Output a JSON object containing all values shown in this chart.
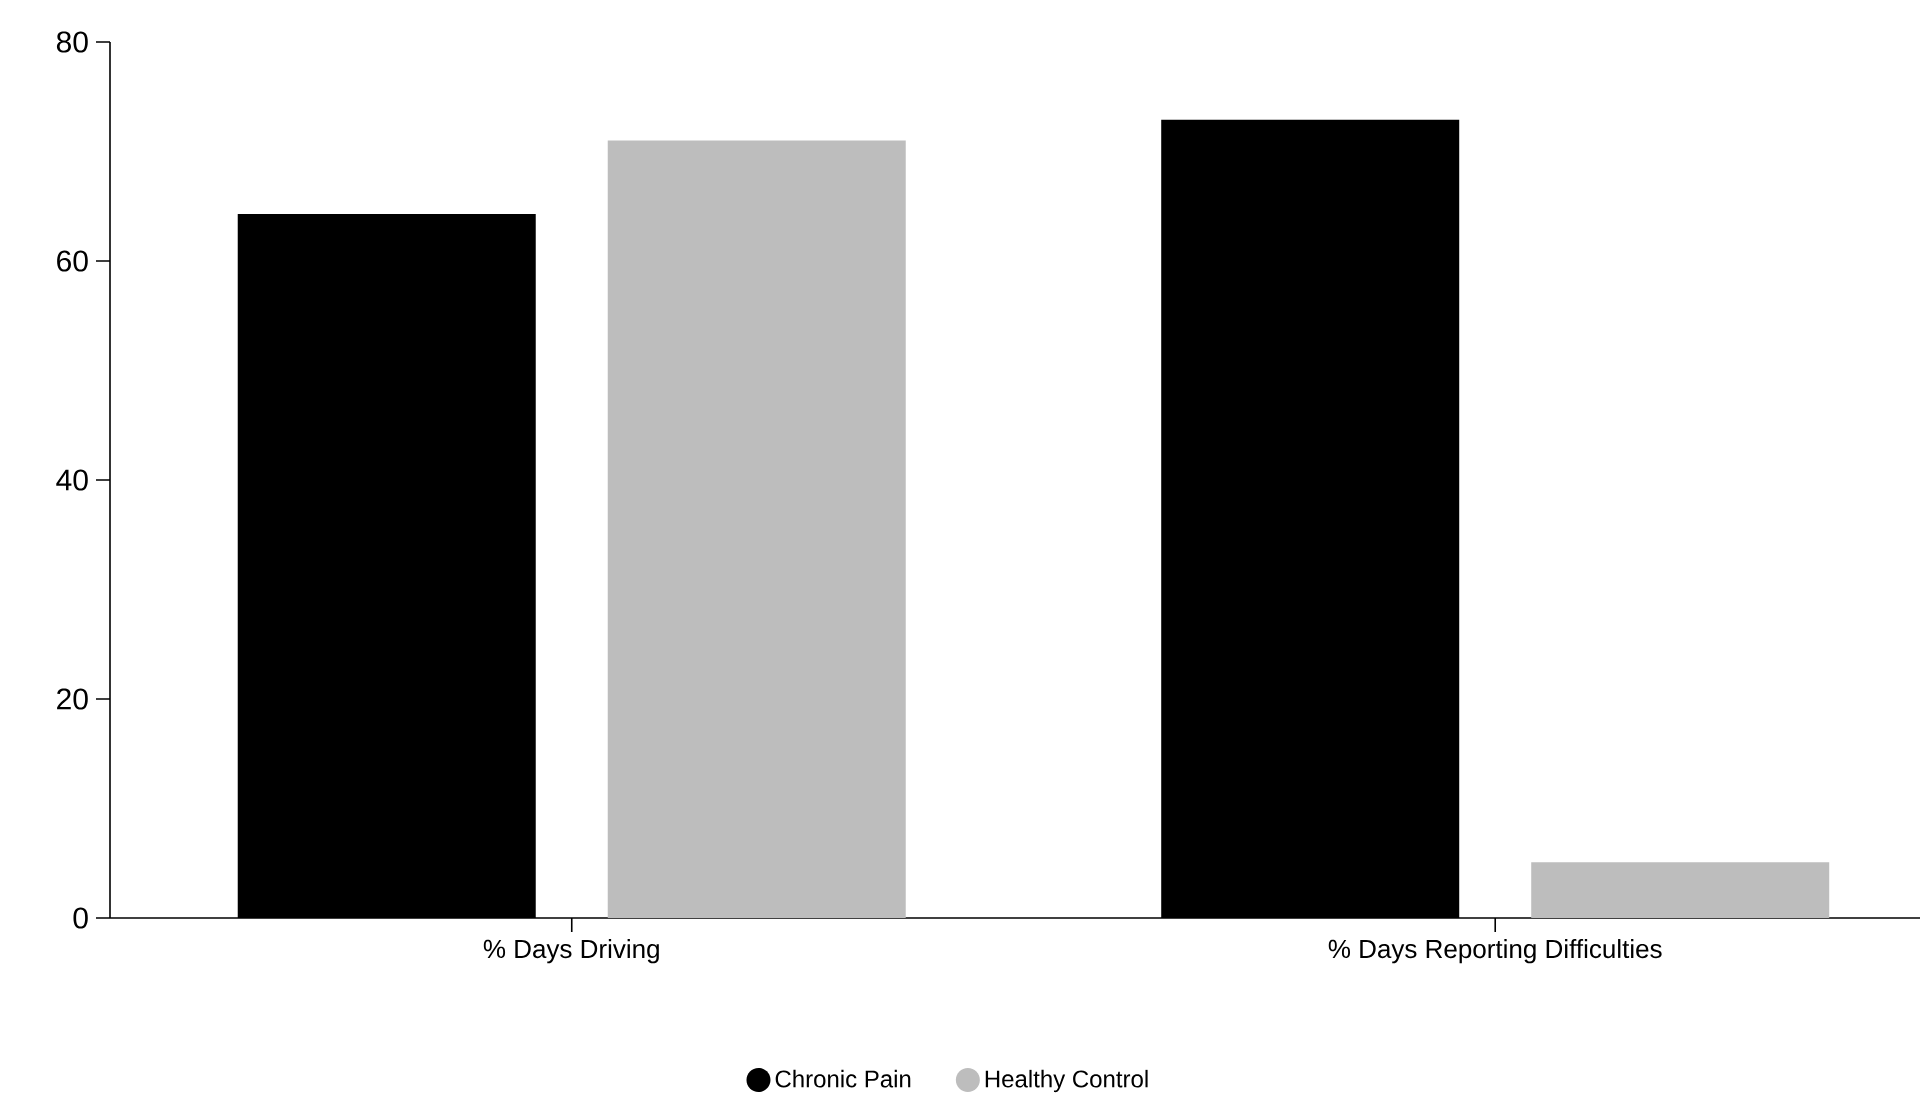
{
  "chart_data": {
    "type": "bar",
    "categories": [
      "% Days Driving",
      "% Days Reporting Difficulties"
    ],
    "series": [
      {
        "name": "Chronic Pain",
        "color": "#000000",
        "values": [
          64.3,
          72.9
        ]
      },
      {
        "name": "Healthy Control",
        "color": "#bdbdbd",
        "values": [
          71.0,
          5.1
        ]
      }
    ],
    "ylim": [
      0,
      80
    ],
    "yticks": [
      0,
      20,
      40,
      60,
      80
    ],
    "legend": "bottom"
  }
}
